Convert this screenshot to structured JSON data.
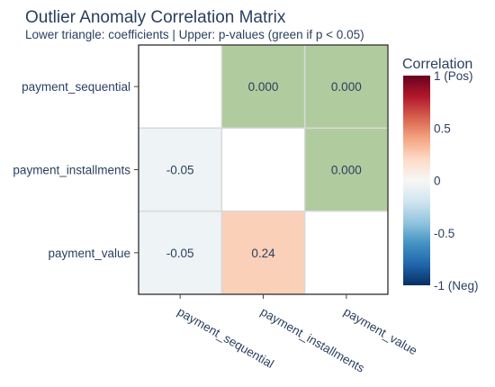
{
  "chart_data": {
    "type": "heatmap",
    "title": "Outlier Anomaly Correlation Matrix",
    "subtitle": "Lower triangle: coefficients | Upper: p-values (green if p < 0.05)",
    "variables": [
      "payment_sequential",
      "payment_installments",
      "payment_value"
    ],
    "cells": [
      [
        {
          "kind": "diagonal",
          "label": ""
        },
        {
          "kind": "pvalue",
          "value": 0.0,
          "label": "0.000",
          "significant": true
        },
        {
          "kind": "pvalue",
          "value": 0.0,
          "label": "0.000",
          "significant": true
        }
      ],
      [
        {
          "kind": "coefficient",
          "value": -0.05,
          "label": "-0.05"
        },
        {
          "kind": "diagonal",
          "label": ""
        },
        {
          "kind": "pvalue",
          "value": 0.0,
          "label": "0.000",
          "significant": true
        }
      ],
      [
        {
          "kind": "coefficient",
          "value": -0.05,
          "label": "-0.05"
        },
        {
          "kind": "coefficient",
          "value": 0.24,
          "label": "0.24"
        },
        {
          "kind": "diagonal",
          "label": ""
        }
      ]
    ],
    "colorbar": {
      "title": "Correlation",
      "range": [
        -1,
        1
      ],
      "ticks": [
        {
          "value": 1,
          "label": "1 (Pos)"
        },
        {
          "value": 0.5,
          "label": "0.5"
        },
        {
          "value": 0,
          "label": "0"
        },
        {
          "value": -0.5,
          "label": "-0.5"
        },
        {
          "value": -1,
          "label": "-1 (Neg)"
        }
      ],
      "colorscale": "RdBu"
    },
    "colors": {
      "significant": "#b0cb9d",
      "diagonal": "#ffffff",
      "text": "#2a3f5f",
      "grid": "#d9d9d9"
    }
  }
}
